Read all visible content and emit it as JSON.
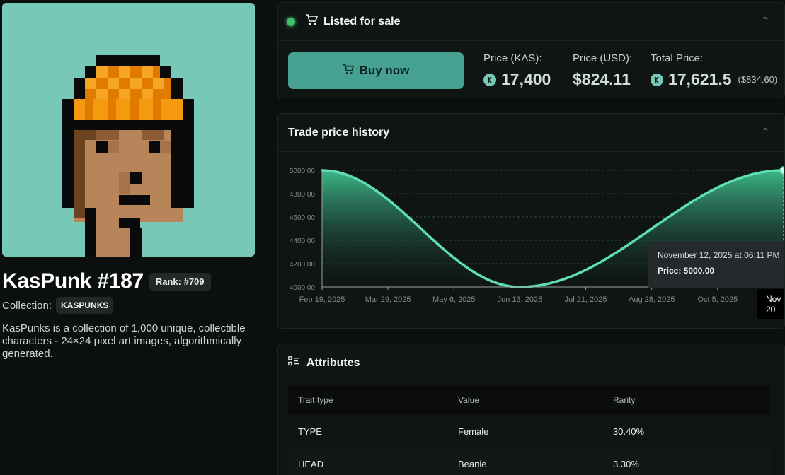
{
  "nft": {
    "title": "KasPunk #187",
    "rank": "Rank: #709",
    "collection_label": "Collection:",
    "collection_name": "KASPUNKS",
    "description": "KasPunks is a collection of 1,000 unique, collectible characters - 24×24 pixel art images, algorithmically generated."
  },
  "sale": {
    "title": "Listed for sale",
    "buy_label": "Buy now",
    "price_kas_label": "Price (KAS):",
    "price_kas": "17,400",
    "price_usd_label": "Price (USD):",
    "price_usd": "$824.11",
    "total_label": "Total Price:",
    "total_kas": "17,621.5",
    "total_usd": "($834.60)",
    "status_color": "#3fbf6a"
  },
  "history": {
    "title": "Trade price history",
    "tooltip_date": "November 12, 2025 at 06:11 PM",
    "tooltip_price": "Price: 5000.00",
    "axis_flag": [
      "Nov",
      "20"
    ]
  },
  "chart_data": {
    "type": "area",
    "x": [
      "2025-02-19",
      "2025-06-13",
      "2025-11-12"
    ],
    "values": [
      5000,
      4000,
      5000
    ],
    "x_tick_labels": [
      "Feb 19, 2025",
      "Mar 29, 2025",
      "May 6, 2025",
      "Jun 13, 2025",
      "Jul 21, 2025",
      "Aug 28, 2025",
      "Oct 5, 2025"
    ],
    "y_tick_labels": [
      "5000.00",
      "4800.00",
      "4600.00",
      "4400.00",
      "4200.00",
      "4000.00"
    ],
    "ylim": [
      4000,
      5000
    ],
    "grid": "horizontal dashed",
    "line_color": "#5de0b0"
  },
  "attributes": {
    "title": "Attributes",
    "headers": [
      "Trait type",
      "Value",
      "Rarity"
    ],
    "rows": [
      [
        "TYPE",
        "Female",
        "30.40%"
      ],
      [
        "HEAD",
        "Beanie",
        "3.30%"
      ]
    ]
  },
  "icons": [
    "cart-icon",
    "kas-icon",
    "chevron-up-icon",
    "list-icon"
  ]
}
